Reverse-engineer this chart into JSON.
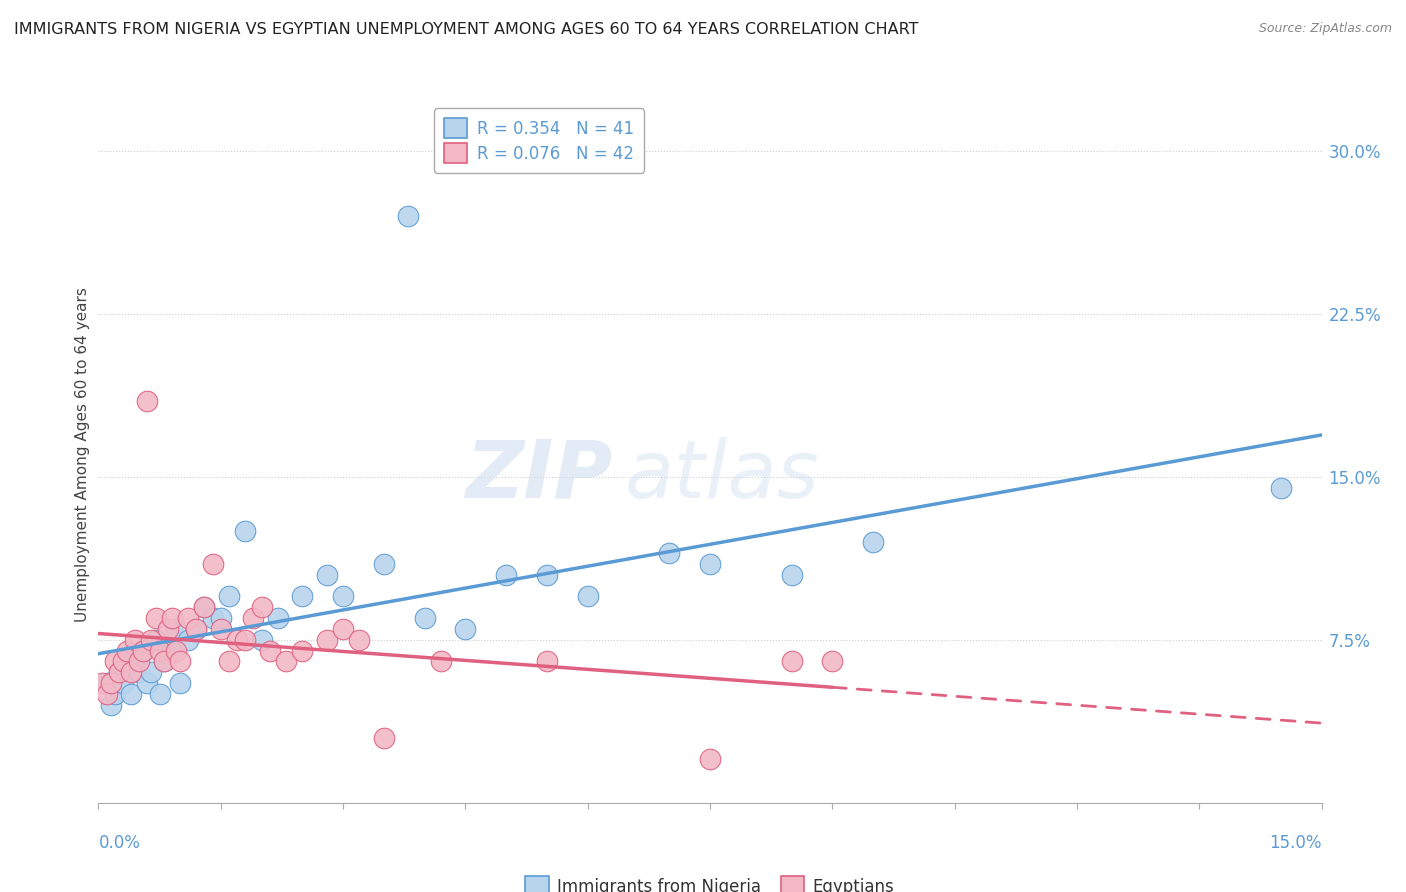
{
  "title": "IMMIGRANTS FROM NIGERIA VS EGYPTIAN UNEMPLOYMENT AMONG AGES 60 TO 64 YEARS CORRELATION CHART",
  "source": "Source: ZipAtlas.com",
  "ylabel": "Unemployment Among Ages 60 to 64 years",
  "legend1_label": "Immigrants from Nigeria",
  "legend2_label": "Egyptians",
  "r1": 0.354,
  "n1": 41,
  "r2": 0.076,
  "n2": 42,
  "ytick_vals": [
    7.5,
    15.0,
    22.5,
    30.0
  ],
  "xlim": [
    0.0,
    15.0
  ],
  "ylim": [
    0.0,
    32.0
  ],
  "color_blue": "#b8d4ed",
  "color_pink": "#f2b8c6",
  "color_blue_line": "#5b9bd5",
  "color_pink_line": "#e06080",
  "watermark_zip": "ZIP",
  "watermark_atlas": "atlas",
  "nigeria_x": [
    0.1,
    0.15,
    0.2,
    0.25,
    0.3,
    0.35,
    0.4,
    0.5,
    0.55,
    0.6,
    0.65,
    0.7,
    0.75,
    0.8,
    0.9,
    0.95,
    1.0,
    1.1,
    1.2,
    1.3,
    1.4,
    1.5,
    1.6,
    1.8,
    2.0,
    2.2,
    2.5,
    2.8,
    3.0,
    3.5,
    4.0,
    4.5,
    5.0,
    5.5,
    6.0,
    7.0,
    7.5,
    8.5,
    9.5,
    3.8,
    14.5
  ],
  "nigeria_y": [
    5.5,
    4.5,
    5.0,
    6.0,
    5.5,
    6.5,
    5.0,
    6.0,
    7.0,
    5.5,
    6.0,
    7.5,
    5.0,
    6.5,
    7.0,
    8.0,
    5.5,
    7.5,
    8.0,
    9.0,
    8.5,
    8.5,
    9.5,
    12.5,
    7.5,
    8.5,
    9.5,
    10.5,
    9.5,
    11.0,
    8.5,
    8.0,
    10.5,
    10.5,
    9.5,
    11.5,
    11.0,
    10.5,
    12.0,
    27.0,
    14.5
  ],
  "egypt_x": [
    0.05,
    0.1,
    0.15,
    0.2,
    0.25,
    0.3,
    0.35,
    0.4,
    0.45,
    0.5,
    0.55,
    0.6,
    0.65,
    0.7,
    0.75,
    0.8,
    0.85,
    0.9,
    0.95,
    1.0,
    1.1,
    1.2,
    1.3,
    1.4,
    1.5,
    1.6,
    1.7,
    1.8,
    1.9,
    2.0,
    2.1,
    2.3,
    2.5,
    2.8,
    3.0,
    3.2,
    3.5,
    4.2,
    5.5,
    7.5,
    8.5,
    9.0
  ],
  "egypt_y": [
    5.5,
    5.0,
    5.5,
    6.5,
    6.0,
    6.5,
    7.0,
    6.0,
    7.5,
    6.5,
    7.0,
    18.5,
    7.5,
    8.5,
    7.0,
    6.5,
    8.0,
    8.5,
    7.0,
    6.5,
    8.5,
    8.0,
    9.0,
    11.0,
    8.0,
    6.5,
    7.5,
    7.5,
    8.5,
    9.0,
    7.0,
    6.5,
    7.0,
    7.5,
    8.0,
    7.5,
    3.0,
    6.5,
    6.5,
    2.0,
    6.5,
    6.5
  ]
}
